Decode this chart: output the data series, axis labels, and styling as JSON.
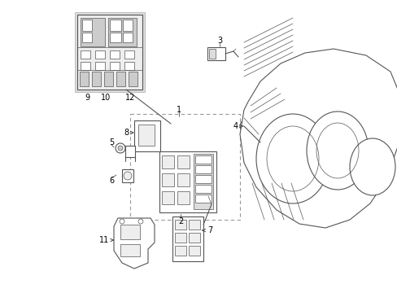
{
  "bg_color": "#ffffff",
  "line_color": "#555555",
  "label_color": "#000000",
  "fig_width": 4.89,
  "fig_height": 3.6,
  "dpi": 100,
  "font_size": 7.0,
  "arrow_color": "#444444"
}
